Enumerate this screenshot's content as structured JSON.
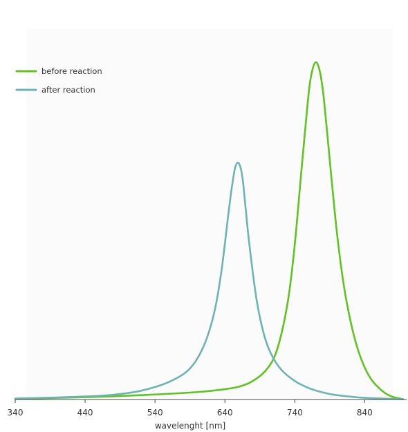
{
  "chart_data": {
    "type": "line",
    "xlabel": "wavelenght [nm]",
    "ylabel": "",
    "title": "",
    "xlim": [
      340,
      900
    ],
    "x_ticks": [
      340,
      440,
      540,
      640,
      740,
      840
    ],
    "ylim": [
      0,
      1.05
    ],
    "y_axis_visible": false,
    "grid": false,
    "legend_position": "top-left",
    "series": [
      {
        "name": "before reaction",
        "color": "#5ec41e",
        "x": [
          340,
          400,
          460,
          520,
          560,
          600,
          630,
          660,
          680,
          700,
          715,
          730,
          740,
          750,
          760,
          765,
          770,
          775,
          780,
          785,
          790,
          800,
          810,
          820,
          830,
          840,
          850,
          860,
          870,
          880,
          890,
          895
        ],
        "y": [
          0.002,
          0.005,
          0.008,
          0.013,
          0.017,
          0.022,
          0.028,
          0.038,
          0.055,
          0.09,
          0.15,
          0.29,
          0.46,
          0.69,
          0.91,
          0.975,
          1.0,
          0.98,
          0.92,
          0.82,
          0.71,
          0.5,
          0.34,
          0.23,
          0.15,
          0.095,
          0.058,
          0.035,
          0.018,
          0.008,
          0.003,
          0.001
        ]
      },
      {
        "name": "after reaction",
        "color": "#6bb4b0",
        "x": [
          340,
          400,
          440,
          480,
          520,
          560,
          590,
          610,
          625,
          635,
          645,
          650,
          655,
          660,
          665,
          670,
          675,
          685,
          695,
          705,
          720,
          740,
          760,
          780,
          800,
          840,
          880,
          895
        ],
        "y": [
          0.003,
          0.006,
          0.009,
          0.014,
          0.026,
          0.052,
          0.092,
          0.16,
          0.26,
          0.38,
          0.55,
          0.63,
          0.69,
          0.7,
          0.66,
          0.56,
          0.46,
          0.3,
          0.2,
          0.14,
          0.09,
          0.055,
          0.034,
          0.021,
          0.013,
          0.005,
          0.002,
          0.001
        ]
      }
    ]
  }
}
